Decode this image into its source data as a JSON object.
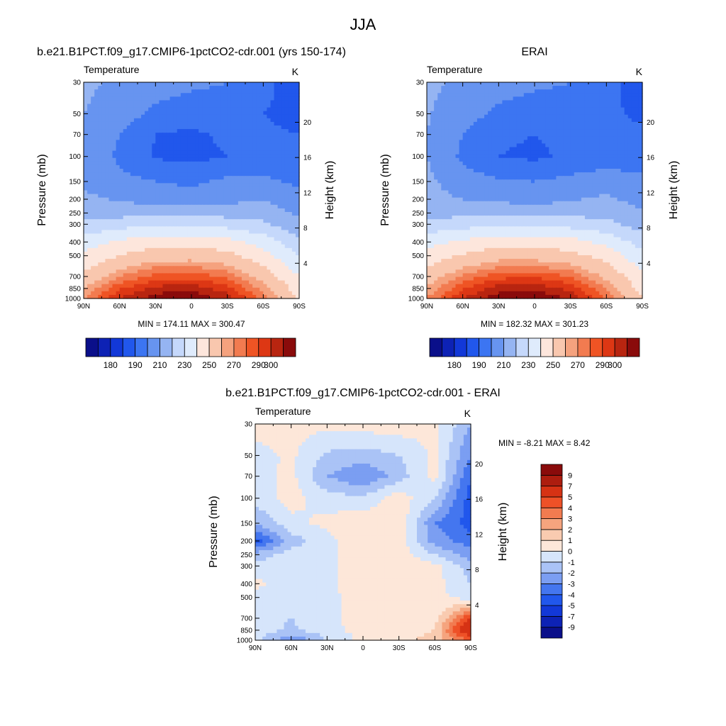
{
  "figure": {
    "season": "JJA",
    "colors": {
      "temperature_scale": [
        "#0a0f8a",
        "#0d22b5",
        "#1238d8",
        "#2157ec",
        "#3c75f2",
        "#6794f0",
        "#95b4f2",
        "#c5d8fb",
        "#dfebfc",
        "#fde6dc",
        "#f9c7ae",
        "#f5a27e",
        "#f27b50",
        "#ef5424",
        "#dd3714",
        "#b82510",
        "#8a0b0b"
      ],
      "difference_scale": [
        "#0a0f8a",
        "#0d22b5",
        "#1238d8",
        "#2157ec",
        "#4476ef",
        "#7b9ef2",
        "#aac3f6",
        "#d6e5fb",
        "#fde7d9",
        "#f9cbb0",
        "#f5a47e",
        "#f27b50",
        "#ee5127",
        "#d63214",
        "#ad1d0f",
        "#8a0b0b"
      ]
    }
  },
  "panels": [
    {
      "title": "b.e21.B1PCT.f09_g17.CMIP6-1pctCO2-cdr.001 (yrs 150-174)",
      "left_string": "Temperature",
      "units": "K",
      "stats": "MIN = 174.11  MAX = 300.47",
      "y_label": "Pressure (mb)",
      "y2_label": "Height (km)"
    },
    {
      "title": "ERAI",
      "left_string": "Temperature",
      "units": "K",
      "stats": "MIN = 182.32  MAX = 301.23",
      "y_label": "Pressure (mb)",
      "y2_label": "Height (km)"
    },
    {
      "title": "b.e21.B1PCT.f09_g17.CMIP6-1pctCO2-cdr.001 - ERAI",
      "left_string": "Temperature",
      "units": "K",
      "stats": "MIN =  -8.21  MAX =   8.42",
      "y_label": "Pressure (mb)",
      "y2_label": "Height (km)"
    }
  ],
  "chart_data": [
    {
      "type": "heatmap",
      "title": "b.e21.B1PCT.f09_g17.CMIP6-1pctCO2-cdr.001 (yrs 150-174)",
      "variable": "Temperature",
      "units": "K",
      "x_ticks": [
        "90N",
        "60N",
        "30N",
        "0",
        "30S",
        "60S",
        "90S"
      ],
      "y_ticks": [
        "30",
        "50",
        "70",
        "100",
        "150",
        "200",
        "250",
        "300",
        "400",
        "500",
        "700",
        "850",
        "1000"
      ],
      "y2_ticks": [
        "20",
        "16",
        "12",
        "8",
        "4"
      ],
      "xlabel": "",
      "ylabel": "Pressure (mb)",
      "y2label": "Height (km)",
      "ylim": [
        1000,
        30
      ],
      "min": 174.11,
      "max": 300.47,
      "colorbar_labels": [
        "180",
        "190",
        "210",
        "230",
        "250",
        "270",
        "290",
        "300"
      ],
      "rows_pressure": [
        30,
        50,
        70,
        100,
        150,
        200,
        250,
        300,
        400,
        500,
        700,
        850,
        1000
      ],
      "cols_latitude": [
        90,
        60,
        30,
        0,
        -30,
        -60,
        -90
      ],
      "values": [
        [
          222,
          218,
          214,
          212,
          210,
          205,
          190
        ],
        [
          220,
          215,
          208,
          205,
          206,
          200,
          196
        ],
        [
          220,
          210,
          200,
          198,
          202,
          202,
          200
        ],
        [
          219,
          208,
          199,
          197,
          200,
          203,
          202
        ],
        [
          218,
          213,
          210,
          208,
          212,
          212,
          208
        ],
        [
          222,
          219,
          216,
          214,
          217,
          220,
          213
        ],
        [
          225,
          226,
          226,
          226,
          226,
          226,
          218
        ],
        [
          232,
          236,
          238,
          238,
          236,
          232,
          222
        ],
        [
          245,
          252,
          256,
          256,
          254,
          246,
          232
        ],
        [
          252,
          260,
          266,
          266,
          263,
          254,
          240
        ],
        [
          263,
          275,
          282,
          283,
          279,
          266,
          250
        ],
        [
          270,
          284,
          292,
          293,
          287,
          273,
          255
        ],
        [
          274,
          290,
          298,
          300,
          293,
          278,
          258
        ]
      ]
    },
    {
      "type": "heatmap",
      "title": "ERAI",
      "variable": "Temperature",
      "units": "K",
      "x_ticks": [
        "90N",
        "60N",
        "30N",
        "0",
        "30S",
        "60S",
        "90S"
      ],
      "y_ticks": [
        "30",
        "50",
        "70",
        "100",
        "150",
        "200",
        "250",
        "300",
        "400",
        "500",
        "700",
        "850",
        "1000"
      ],
      "y2_ticks": [
        "20",
        "16",
        "12",
        "8",
        "4"
      ],
      "xlabel": "",
      "ylabel": "Pressure (mb)",
      "y2label": "Height (km)",
      "ylim": [
        1000,
        30
      ],
      "min": 182.32,
      "max": 301.23,
      "colorbar_labels": [
        "180",
        "190",
        "210",
        "230",
        "250",
        "270",
        "290",
        "300"
      ],
      "rows_pressure": [
        30,
        50,
        70,
        100,
        150,
        200,
        250,
        300,
        400,
        500,
        700,
        850,
        1000
      ],
      "cols_latitude": [
        90,
        60,
        30,
        0,
        -30,
        -60,
        -90
      ],
      "values": [
        [
          222,
          218,
          214,
          212,
          210,
          205,
          192
        ],
        [
          221,
          214,
          208,
          205,
          206,
          202,
          198
        ],
        [
          220,
          210,
          202,
          200,
          203,
          203,
          202
        ],
        [
          220,
          208,
          200,
          198,
          202,
          205,
          205
        ],
        [
          222,
          215,
          211,
          210,
          213,
          215,
          212
        ],
        [
          223,
          220,
          218,
          216,
          219,
          222,
          216
        ],
        [
          226,
          227,
          227,
          227,
          227,
          227,
          221
        ],
        [
          233,
          236,
          238,
          238,
          236,
          233,
          225
        ],
        [
          246,
          252,
          256,
          256,
          254,
          247,
          236
        ],
        [
          254,
          261,
          266,
          266,
          263,
          256,
          243
        ],
        [
          265,
          276,
          283,
          284,
          280,
          268,
          252
        ],
        [
          271,
          284,
          293,
          294,
          288,
          275,
          256
        ],
        [
          275,
          290,
          298,
          301,
          294,
          280,
          260
        ]
      ]
    },
    {
      "type": "heatmap",
      "title": "b.e21.B1PCT.f09_g17.CMIP6-1pctCO2-cdr.001 - ERAI",
      "variable": "Temperature",
      "units": "K",
      "x_ticks": [
        "90N",
        "60N",
        "30N",
        "0",
        "30S",
        "60S",
        "90S"
      ],
      "y_ticks": [
        "30",
        "50",
        "70",
        "100",
        "150",
        "200",
        "250",
        "300",
        "400",
        "500",
        "700",
        "850",
        "1000"
      ],
      "y2_ticks": [
        "20",
        "16",
        "12",
        "8",
        "4"
      ],
      "xlabel": "",
      "ylabel": "Pressure (mb)",
      "y2label": "Height (km)",
      "ylim": [
        1000,
        30
      ],
      "min": -8.21,
      "max": 8.42,
      "colorbar_labels": [
        "9",
        "7",
        "5",
        "4",
        "3",
        "2",
        "1",
        "0",
        "-1",
        "-2",
        "-3",
        "-4",
        "-5",
        "-7",
        "-9"
      ],
      "rows_pressure": [
        30,
        50,
        70,
        100,
        150,
        200,
        250,
        300,
        400,
        500,
        700,
        850,
        1000
      ],
      "cols_latitude": [
        90,
        60,
        30,
        0,
        -30,
        -60,
        -90
      ],
      "values": [
        [
          0.5,
          0.4,
          0.3,
          0.5,
          0.6,
          0.3,
          -2.0
        ],
        [
          -0.4,
          0.2,
          -1.2,
          -1.5,
          -1.0,
          0.2,
          -3.0
        ],
        [
          -0.5,
          0.3,
          -2.0,
          -3.0,
          -1.5,
          0.3,
          -4.0
        ],
        [
          -0.5,
          0.4,
          -0.5,
          -0.8,
          0.6,
          -1.0,
          -4.5
        ],
        [
          -2.0,
          -0.3,
          0.3,
          0.8,
          0.8,
          -3.0,
          -4.5
        ],
        [
          -4.5,
          -1.5,
          -0.4,
          0.8,
          0.6,
          -2.5,
          -3.5
        ],
        [
          -1.5,
          -0.5,
          -0.3,
          0.8,
          0.6,
          -1.0,
          -2.5
        ],
        [
          -0.8,
          -0.3,
          -0.3,
          0.7,
          0.7,
          0.3,
          -1.5
        ],
        [
          0.3,
          -0.7,
          -0.3,
          0.8,
          0.7,
          0.4,
          -1.0
        ],
        [
          -0.4,
          -1.0,
          -0.4,
          0.6,
          0.5,
          0.3,
          -0.5
        ],
        [
          -0.5,
          -1.0,
          -0.3,
          0.5,
          0.4,
          0.5,
          5.0
        ],
        [
          -0.5,
          -1.2,
          -0.4,
          0.4,
          0.6,
          1.0,
          7.0
        ],
        [
          -0.5,
          -3.0,
          -1.0,
          0.3,
          0.5,
          1.5,
          4.0
        ]
      ]
    }
  ]
}
